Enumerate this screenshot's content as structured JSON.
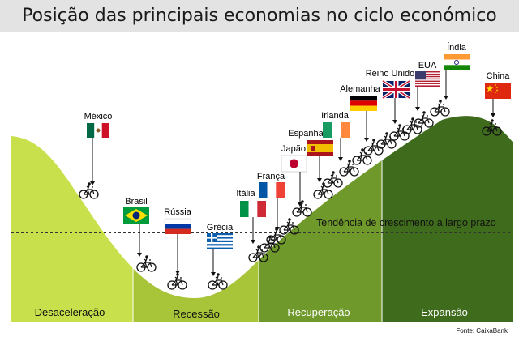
{
  "title": "Posição das principais economias no ciclo económico",
  "trend_label": "Tendência de crescimento a largo prazo",
  "source": "Fonte: CaixaBank",
  "phases": [
    {
      "id": "desaceleracao",
      "label": "Desaceleração",
      "color": "#c8e04c"
    },
    {
      "id": "recessao",
      "label": "Recessão",
      "color": "#a8c53a"
    },
    {
      "id": "recuperacao",
      "label": "Recuperação",
      "color": "#6f9a2b"
    },
    {
      "id": "expansao",
      "label": "Expansão",
      "color": "#3f6b1d"
    }
  ],
  "countries": [
    {
      "id": "mexico",
      "name": "México",
      "flag": "mexico-flag-icon"
    },
    {
      "id": "brasil",
      "name": "Brasil",
      "flag": "brazil-flag-icon"
    },
    {
      "id": "russia",
      "name": "Rússia",
      "flag": "russia-flag-icon"
    },
    {
      "id": "grecia",
      "name": "Grécia",
      "flag": "greece-flag-icon"
    },
    {
      "id": "italia",
      "name": "Itália",
      "flag": "italy-flag-icon"
    },
    {
      "id": "franca",
      "name": "França",
      "flag": "france-flag-icon"
    },
    {
      "id": "japao",
      "name": "Japão",
      "flag": "japan-flag-icon"
    },
    {
      "id": "espanha",
      "name": "Espanha",
      "flag": "spain-flag-icon"
    },
    {
      "id": "irlanda",
      "name": "Irlanda",
      "flag": "ireland-flag-icon"
    },
    {
      "id": "alemanha",
      "name": "Alemanha",
      "flag": "germany-flag-icon"
    },
    {
      "id": "reino_unido",
      "name": "Reino Unido",
      "flag": "uk-flag-icon"
    },
    {
      "id": "eua",
      "name": "EUA",
      "flag": "usa-flag-icon"
    },
    {
      "id": "india",
      "name": "Índia",
      "flag": "india-flag-icon"
    },
    {
      "id": "china",
      "name": "China",
      "flag": "china-flag-icon"
    }
  ]
}
